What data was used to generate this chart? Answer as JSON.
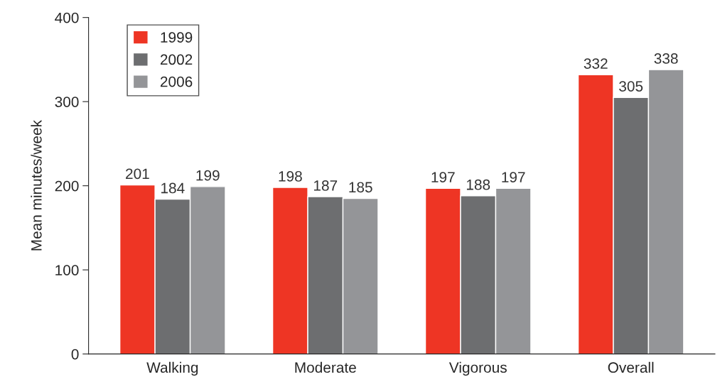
{
  "chart_data": {
    "type": "bar",
    "ylabel": "Mean minutes/week",
    "categories": [
      "Walking",
      "Moderate",
      "Vigorous",
      "Overall"
    ],
    "series": [
      {
        "name": "1999",
        "color": "#ee3524",
        "values": [
          201,
          198,
          197,
          332
        ]
      },
      {
        "name": "2002",
        "color": "#6d6e70",
        "values": [
          184,
          187,
          188,
          305
        ]
      },
      {
        "name": "2006",
        "color": "#949598",
        "values": [
          199,
          185,
          197,
          338
        ]
      }
    ],
    "ylim": [
      0,
      400
    ],
    "yticks": [
      0,
      100,
      200,
      300,
      400
    ],
    "data_labels": true,
    "legend": "top left",
    "grid": false
  }
}
